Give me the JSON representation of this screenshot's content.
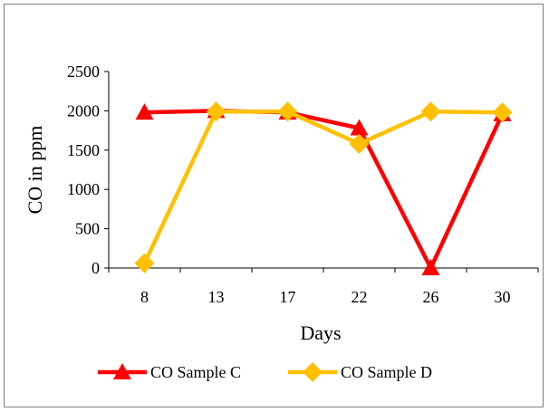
{
  "chart_data": {
    "type": "line",
    "title": "",
    "xlabel": "Days",
    "ylabel": "CO in ppm",
    "categories": [
      "8",
      "13",
      "17",
      "22",
      "26",
      "30"
    ],
    "ylim": [
      0,
      2500
    ],
    "yticks": [
      "0",
      "500",
      "1000",
      "1500",
      "2000",
      "2500"
    ],
    "grid": false,
    "legend_position": "bottom",
    "series": [
      {
        "name": "CO Sample C",
        "values": [
          1980,
          2000,
          1980,
          1780,
          0,
          1960
        ],
        "color": "#ff0000",
        "marker": "triangle"
      },
      {
        "name": "CO Sample D",
        "values": [
          60,
          1990,
          1990,
          1580,
          1990,
          1980
        ],
        "color": "#ffc000",
        "marker": "diamond"
      }
    ]
  }
}
